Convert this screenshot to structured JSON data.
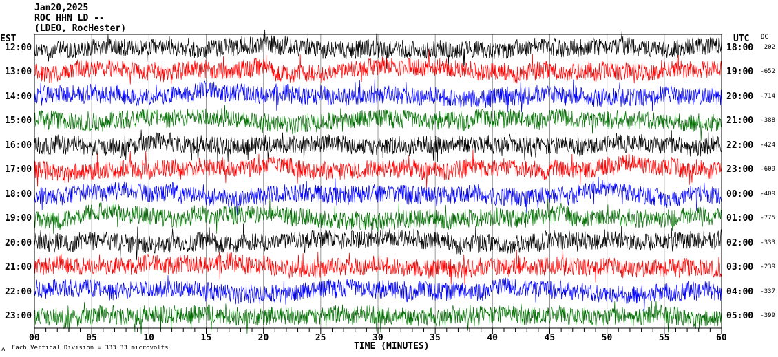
{
  "header": {
    "date": "Jan20,2025",
    "station": "ROC HHN LD --",
    "network": "(LDEO, RocHester)"
  },
  "left_axis_label": "EST",
  "right_axis_label": "UTC",
  "dc_label": "DC",
  "footer": {
    "mark": "ʌ",
    "scale_text": "Each Vertical Division =  333.33 microvolts"
  },
  "chart_data": {
    "type": "line",
    "xlabel": "TIME (MINUTES)",
    "xlim": [
      0,
      60
    ],
    "x_ticks": [
      "00",
      "05",
      "10",
      "15",
      "20",
      "25",
      "30",
      "35",
      "40",
      "45",
      "50",
      "55",
      "60"
    ],
    "grid": "vertical every 5 minutes",
    "trace_colors": [
      "#000000",
      "#ff0000",
      "#0000ff",
      "#007000"
    ],
    "rows": [
      {
        "est": "12:00",
        "utc": "18:00",
        "dc": "202"
      },
      {
        "est": "13:00",
        "utc": "19:00",
        "dc": "-652"
      },
      {
        "est": "14:00",
        "utc": "20:00",
        "dc": "-714"
      },
      {
        "est": "15:00",
        "utc": "21:00",
        "dc": "-388"
      },
      {
        "est": "16:00",
        "utc": "22:00",
        "dc": "-424"
      },
      {
        "est": "17:00",
        "utc": "23:00",
        "dc": "-609"
      },
      {
        "est": "18:00",
        "utc": "00:00",
        "dc": "-409"
      },
      {
        "est": "19:00",
        "utc": "01:00",
        "dc": "-775"
      },
      {
        "est": "20:00",
        "utc": "02:00",
        "dc": "-333"
      },
      {
        "est": "21:00",
        "utc": "03:00",
        "dc": "-239"
      },
      {
        "est": "22:00",
        "utc": "04:00",
        "dc": "-337"
      },
      {
        "est": "23:00",
        "utc": "05:00",
        "dc": "-399"
      }
    ]
  }
}
